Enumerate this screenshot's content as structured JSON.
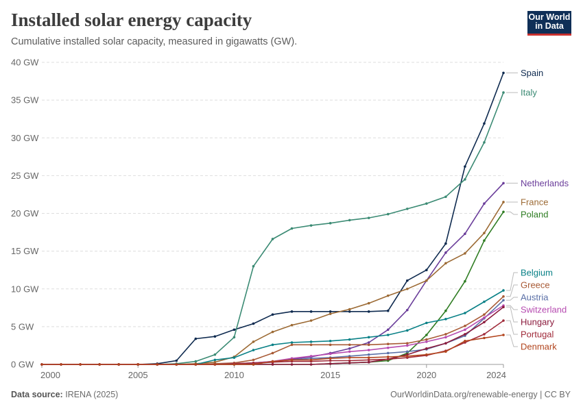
{
  "header": {
    "title": "Installed solar energy capacity",
    "subtitle": "Cumulative installed solar capacity, measured in gigawatts (GW).",
    "logo_line1": "Our World",
    "logo_line2": "in Data"
  },
  "footer": {
    "source_label": "Data source:",
    "source_value": "IRENA (2025)",
    "credit": "OurWorldinData.org/renewable-energy | CC BY"
  },
  "chart_data": {
    "type": "line",
    "title": "Installed solar energy capacity",
    "subtitle": "Cumulative installed solar capacity, measured in gigawatts (GW).",
    "xlabel": "",
    "ylabel": "",
    "xlim": [
      2000,
      2024
    ],
    "ylim": [
      0,
      40
    ],
    "x_ticks": [
      2000,
      2005,
      2010,
      2015,
      2020,
      2024
    ],
    "y_ticks": [
      0,
      5,
      10,
      15,
      20,
      25,
      30,
      35,
      40
    ],
    "y_unit": " GW",
    "grid": true,
    "legend": "right, labels at line ends",
    "x": [
      2000,
      2001,
      2002,
      2003,
      2004,
      2005,
      2006,
      2007,
      2008,
      2009,
      2010,
      2011,
      2012,
      2013,
      2014,
      2015,
      2016,
      2017,
      2018,
      2019,
      2020,
      2021,
      2022,
      2023,
      2024
    ],
    "series": [
      {
        "name": "Spain",
        "color": "#0e2a4f",
        "values": [
          0,
          0,
          0,
          0,
          0,
          0,
          0.1,
          0.5,
          3.4,
          3.7,
          4.6,
          5.4,
          6.6,
          7.0,
          7.0,
          7.0,
          7.0,
          7.0,
          7.1,
          11.1,
          12.5,
          16.0,
          26.2,
          31.9,
          38.6
        ]
      },
      {
        "name": "Italy",
        "color": "#3a8a73",
        "values": [
          0,
          0,
          0,
          0,
          0,
          0,
          0,
          0.1,
          0.4,
          1.3,
          3.6,
          13.0,
          16.6,
          18.0,
          18.4,
          18.7,
          19.1,
          19.4,
          19.9,
          20.6,
          21.3,
          22.2,
          24.5,
          29.4,
          36.0
        ]
      },
      {
        "name": "Netherlands",
        "color": "#6a3d9a",
        "values": [
          0,
          0,
          0,
          0,
          0,
          0,
          0,
          0,
          0,
          0,
          0.1,
          0.1,
          0.3,
          0.7,
          1.0,
          1.5,
          2.1,
          2.9,
          4.6,
          7.2,
          11.1,
          14.8,
          17.3,
          21.3,
          24.0
        ]
      },
      {
        "name": "France",
        "color": "#9c6a34",
        "values": [
          0,
          0,
          0,
          0,
          0,
          0,
          0,
          0,
          0.1,
          0.3,
          1.0,
          3.0,
          4.3,
          5.2,
          5.8,
          6.7,
          7.3,
          8.1,
          9.1,
          10.0,
          11.1,
          13.4,
          14.7,
          17.4,
          21.5
        ]
      },
      {
        "name": "Poland",
        "color": "#2f7d23",
        "values": [
          0,
          0,
          0,
          0,
          0,
          0,
          0,
          0,
          0,
          0,
          0,
          0,
          0,
          0,
          0,
          0.1,
          0.2,
          0.3,
          0.5,
          1.5,
          3.9,
          7.1,
          11.0,
          16.4,
          20.2
        ]
      },
      {
        "name": "Belgium",
        "color": "#0a8187",
        "values": [
          0,
          0,
          0,
          0,
          0,
          0,
          0,
          0,
          0,
          0.6,
          0.9,
          1.9,
          2.6,
          2.9,
          3.0,
          3.1,
          3.3,
          3.6,
          3.9,
          4.5,
          5.5,
          6.0,
          6.8,
          8.3,
          9.8
        ]
      },
      {
        "name": "Greece",
        "color": "#a85a35",
        "values": [
          0,
          0,
          0,
          0,
          0,
          0,
          0,
          0,
          0,
          0.1,
          0.2,
          0.6,
          1.5,
          2.6,
          2.6,
          2.6,
          2.6,
          2.6,
          2.7,
          2.8,
          3.3,
          4.0,
          5.1,
          6.6,
          9.0
        ]
      },
      {
        "name": "Austria",
        "color": "#5a6fa6",
        "values": [
          0,
          0,
          0,
          0,
          0,
          0,
          0,
          0,
          0,
          0,
          0.1,
          0.2,
          0.4,
          0.6,
          0.8,
          0.9,
          1.1,
          1.3,
          1.5,
          1.7,
          2.0,
          2.8,
          3.8,
          6.1,
          8.5
        ]
      },
      {
        "name": "Switzerland",
        "color": "#b64bb0",
        "values": [
          0,
          0,
          0,
          0,
          0,
          0,
          0,
          0,
          0,
          0,
          0.1,
          0.2,
          0.4,
          0.8,
          1.1,
          1.4,
          1.7,
          1.9,
          2.2,
          2.5,
          3.0,
          3.6,
          4.6,
          6.2,
          7.8
        ]
      },
      {
        "name": "Hungary",
        "color": "#8b1a3c",
        "values": [
          0,
          0,
          0,
          0,
          0,
          0,
          0,
          0,
          0,
          0,
          0,
          0,
          0,
          0,
          0,
          0.1,
          0.2,
          0.3,
          0.7,
          1.3,
          2.1,
          2.8,
          4.0,
          5.6,
          7.6
        ]
      },
      {
        "name": "Portugal",
        "color": "#a02b3a",
        "values": [
          0,
          0,
          0,
          0,
          0,
          0,
          0,
          0,
          0,
          0,
          0.1,
          0.2,
          0.3,
          0.4,
          0.4,
          0.5,
          0.5,
          0.6,
          0.7,
          0.9,
          1.2,
          1.8,
          2.9,
          4.0,
          5.8
        ]
      },
      {
        "name": "Denmark",
        "color": "#b2451e",
        "values": [
          0,
          0,
          0,
          0,
          0,
          0,
          0,
          0,
          0,
          0,
          0,
          0,
          0.4,
          0.6,
          0.6,
          0.8,
          0.9,
          0.9,
          1.0,
          1.1,
          1.3,
          1.7,
          3.1,
          3.5,
          3.9
        ]
      }
    ]
  }
}
